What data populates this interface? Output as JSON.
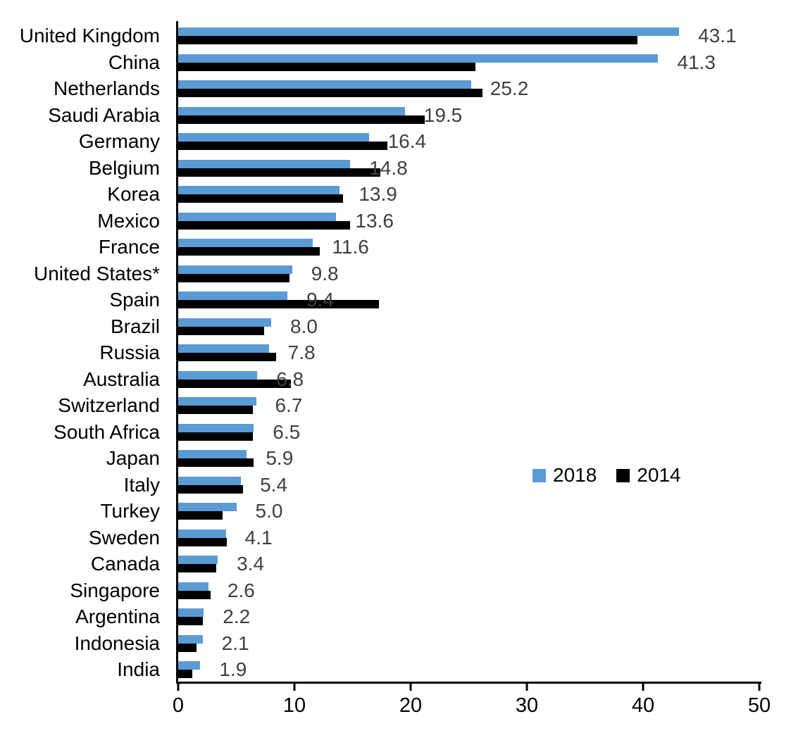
{
  "chart_data": {
    "type": "bar",
    "orientation": "horizontal",
    "title": "",
    "xlabel": "",
    "ylabel": "",
    "xlim": [
      0,
      50
    ],
    "x_ticks": [
      0,
      10,
      20,
      30,
      40,
      50
    ],
    "grid": false,
    "legend": {
      "position": "center-right",
      "entries": [
        {
          "label": "2018",
          "color": "#5B9BD5"
        },
        {
          "label": "2014",
          "color": "#000000"
        }
      ]
    },
    "categories": [
      "United Kingdom",
      "China",
      "Netherlands",
      "Saudi Arabia",
      "Germany",
      "Belgium",
      "Korea",
      "Mexico",
      "France",
      "United States*",
      "Spain",
      "Brazil",
      "Russia",
      "Australia",
      "Switzerland",
      "South Africa",
      "Japan",
      "Italy",
      "Turkey",
      "Sweden",
      "Canada",
      "Singapore",
      "Argentina",
      "Indonesia",
      "India"
    ],
    "series": [
      {
        "name": "2018",
        "color": "#5B9BD5",
        "values": [
          43.1,
          41.3,
          25.2,
          19.5,
          16.4,
          14.8,
          13.9,
          13.6,
          11.6,
          9.8,
          9.4,
          8.0,
          7.8,
          6.8,
          6.7,
          6.5,
          5.9,
          5.4,
          5.0,
          4.1,
          3.4,
          2.6,
          2.2,
          2.1,
          1.9
        ],
        "data_labels": [
          "43.1",
          "41.3",
          "25.2",
          "19.5",
          "16.4",
          "14.8",
          "13.9",
          "13.6",
          "11.6",
          "9.8",
          "9.4",
          "8.0",
          "7.8",
          "6.8",
          "6.7",
          "6.5",
          "5.9",
          "5.4",
          "5.0",
          "4.1",
          "3.4",
          "2.6",
          "2.2",
          "2.1",
          "1.9"
        ]
      },
      {
        "name": "2014",
        "color": "#000000",
        "values": [
          39.5,
          25.6,
          26.2,
          21.2,
          18.0,
          17.4,
          14.2,
          14.8,
          12.2,
          9.6,
          17.3,
          7.4,
          8.4,
          9.7,
          6.4,
          6.4,
          6.5,
          5.6,
          3.8,
          4.2,
          3.3,
          2.8,
          2.1,
          1.6,
          1.2
        ],
        "data_labels": []
      }
    ],
    "text_colors": {
      "value_label": "#404040",
      "axis_text": "#000000"
    }
  }
}
